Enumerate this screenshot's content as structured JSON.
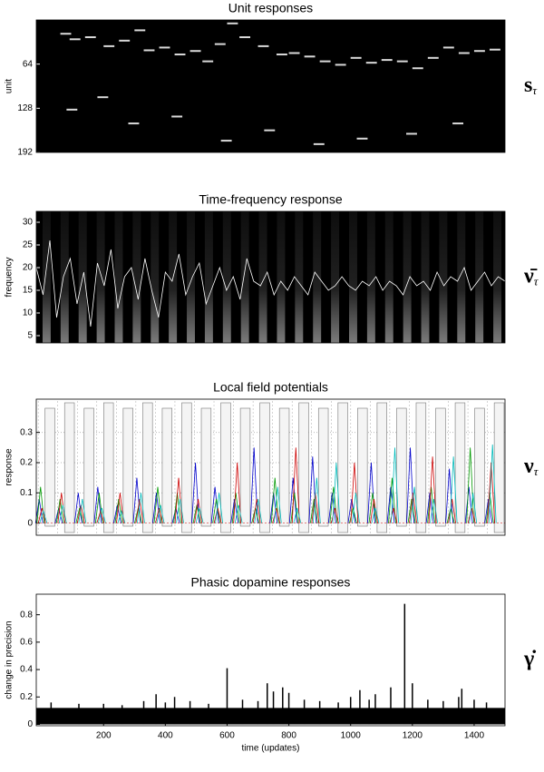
{
  "chart_data": [
    {
      "type": "raster",
      "title": "Unit responses",
      "ylabel": "unit",
      "symbol": "s",
      "symbol_sub": "τ",
      "xlim": [
        -18,
        1500
      ],
      "ylim": [
        0,
        192
      ],
      "y_inverted": true,
      "yticks": [
        64,
        128,
        192
      ],
      "color": "#ffffff",
      "x": [
        60,
        90,
        140,
        200,
        250,
        300,
        330,
        380,
        430,
        480,
        520,
        560,
        600,
        640,
        700,
        760,
        800,
        850,
        900,
        950,
        1000,
        1050,
        1100,
        1150,
        1200,
        1250,
        1300,
        1350,
        1400,
        1450,
        80,
        180,
        280,
        420,
        580,
        720,
        880,
        1020,
        1180,
        1330
      ],
      "values": [
        20,
        28,
        25,
        38,
        30,
        15,
        44,
        40,
        50,
        45,
        60,
        35,
        5,
        25,
        38,
        50,
        48,
        53,
        60,
        65,
        55,
        62,
        58,
        60,
        70,
        55,
        40,
        48,
        45,
        43,
        130,
        112,
        150,
        140,
        175,
        160,
        180,
        172,
        165,
        150
      ]
    },
    {
      "type": "line",
      "title": "Time-frequency response",
      "ylabel": "frequency",
      "symbol": "ν̄",
      "symbol_sub": "τ",
      "ylim": [
        3.4,
        32.4
      ],
      "yticks": [
        5,
        10,
        15,
        20,
        25,
        30
      ],
      "color": "#ffffff",
      "values": [
        20,
        14,
        26,
        9,
        18,
        22,
        12,
        19,
        7,
        21,
        16,
        24,
        11,
        18,
        20,
        13,
        22,
        15,
        9,
        19,
        17,
        23,
        14,
        18,
        21,
        12,
        16,
        20,
        15,
        18,
        13,
        22,
        17,
        16,
        19,
        14,
        17,
        15,
        18,
        16,
        14,
        19,
        17,
        15,
        16,
        18,
        16,
        15,
        17,
        16,
        18,
        15,
        17,
        16,
        14,
        18,
        16,
        17,
        15,
        19,
        16,
        18,
        17,
        20,
        15,
        17,
        19,
        16,
        18,
        17
      ]
    },
    {
      "type": "impulse",
      "title": "Local field potentials",
      "ylabel": "response",
      "symbol": "ν",
      "symbol_sub": "τ",
      "ylim": [
        -0.04,
        0.41
      ],
      "yticks": [
        0,
        0.1,
        0.2,
        0.3
      ],
      "grid": true,
      "series": [
        {
          "color": "#0000cc",
          "values": [
            0.08,
            0.05,
            0.1,
            0.12,
            0.06,
            0.15,
            0.1,
            0.05,
            0.2,
            0.12,
            0.08,
            0.25,
            0.1,
            0.15,
            0.22,
            0.1,
            0.08,
            0.2,
            0.12,
            0.25,
            0.1,
            0.18,
            0.12,
            0.08
          ]
        },
        {
          "color": "#009900",
          "values": [
            0.12,
            0.08,
            0.05,
            0.1,
            0.08,
            0.05,
            0.12,
            0.1,
            0.06,
            0.08,
            0.1,
            0.05,
            0.15,
            0.1,
            0.08,
            0.12,
            0.05,
            0.1,
            0.15,
            0.08,
            0.12,
            0.05,
            0.25,
            0.1
          ]
        },
        {
          "color": "#cc0000",
          "values": [
            0.05,
            0.1,
            0.06,
            0.04,
            0.1,
            0.08,
            0.05,
            0.15,
            0.08,
            0.05,
            0.2,
            0.08,
            0.05,
            0.25,
            0.1,
            0.05,
            0.2,
            0.08,
            0.05,
            0.1,
            0.22,
            0.08,
            0.05,
            0.2
          ]
        },
        {
          "color": "#00bbbb",
          "values": [
            0.04,
            0.06,
            0.08,
            0.05,
            0.04,
            0.1,
            0.06,
            0.08,
            0.05,
            0.1,
            0.06,
            0.08,
            0.12,
            0.05,
            0.15,
            0.2,
            0.1,
            0.05,
            0.25,
            0.12,
            0.08,
            0.22,
            0.1,
            0.26
          ]
        }
      ]
    },
    {
      "type": "spike",
      "title": "Phasic dopamine responses",
      "ylabel": "change in precision",
      "xlabel": "time (updates)",
      "symbol": "γ̇",
      "xlim": [
        -18,
        1500
      ],
      "ylim": [
        -0.01,
        0.95
      ],
      "xticks": [
        200,
        400,
        600,
        800,
        1000,
        1200,
        1400
      ],
      "yticks": [
        0,
        0.2,
        0.4,
        0.6,
        0.8
      ],
      "color": "#000000",
      "baseline": 0.12,
      "x": [
        30,
        120,
        200,
        260,
        330,
        370,
        400,
        430,
        480,
        540,
        600,
        650,
        700,
        730,
        750,
        780,
        800,
        850,
        900,
        960,
        1000,
        1030,
        1060,
        1080,
        1130,
        1175,
        1200,
        1250,
        1300,
        1350,
        1360,
        1400,
        1440
      ],
      "values": [
        0.16,
        0.15,
        0.15,
        0.14,
        0.17,
        0.22,
        0.16,
        0.2,
        0.17,
        0.15,
        0.41,
        0.18,
        0.17,
        0.3,
        0.24,
        0.27,
        0.23,
        0.18,
        0.17,
        0.16,
        0.2,
        0.25,
        0.18,
        0.22,
        0.27,
        0.88,
        0.3,
        0.18,
        0.17,
        0.2,
        0.26,
        0.18,
        0.16
      ]
    }
  ]
}
